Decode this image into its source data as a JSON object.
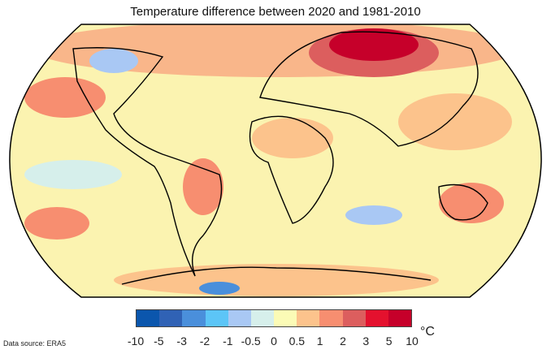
{
  "title": "Temperature difference between 2020 and 1981-2010",
  "source": "Data source: ERA5",
  "colorbar": {
    "unit": "°C",
    "ticks": [
      "-10",
      "-5",
      "-3",
      "-2",
      "-1",
      "-0.5",
      "0",
      "0.5",
      "1",
      "2",
      "3",
      "5",
      "10"
    ],
    "colors": [
      "#0b56ad",
      "#3062b5",
      "#4a8fdb",
      "#5cc5f7",
      "#a9c8f4",
      "#d6efeb",
      "#fbfbb6",
      "#fcc38c",
      "#f78e70",
      "#dc5e5e",
      "#e4112e",
      "#c6002a"
    ]
  }
}
